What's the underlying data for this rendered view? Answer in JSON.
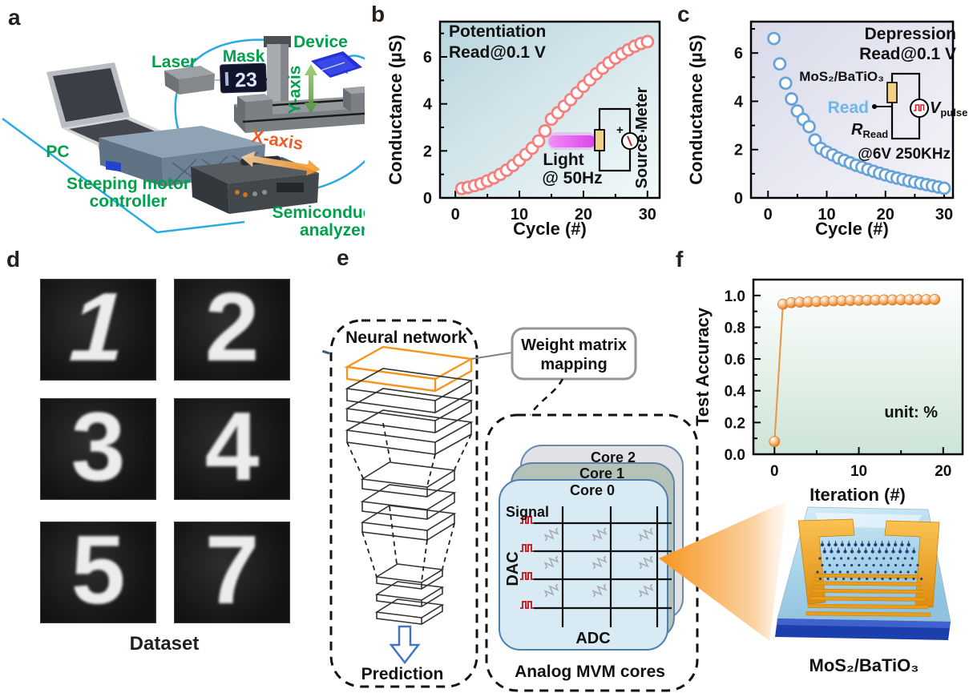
{
  "figure_labels": {
    "a": "a",
    "b": "b",
    "c": "c",
    "d": "d",
    "e": "e",
    "f": "f"
  },
  "panel_a": {
    "pc": "PC",
    "laser": "Laser",
    "mask": "Mask",
    "mask_display": "23",
    "device": "Device",
    "y_axis": "Y-axis",
    "x_axis": "X-axis",
    "motor_line1": "Steeping motor",
    "motor_line2": "controller",
    "analyzer_line1": "Semiconductor",
    "analyzer_line2": "analyzer"
  },
  "panel_b_inset": {
    "light_line1": "Light",
    "light_line2": "@ 50Hz",
    "meter": "Source Meter",
    "plus": "+",
    "minus": "-"
  },
  "panel_c_inset": {
    "material": "MoS₂/BaTiO₃",
    "read": "Read",
    "r_base": "R",
    "r_sub": "Read",
    "v_base": "V",
    "v_sub": "pulse",
    "condition": "@6V 250KHz"
  },
  "panel_d": {
    "digits": [
      "1",
      "2",
      "3",
      "4",
      "5",
      "7"
    ],
    "caption": "Dataset"
  },
  "panel_e": {
    "nn_title": "Neural network",
    "weight_line1": "Weight matrix",
    "weight_line2": "mapping",
    "core2": "Core 2",
    "core1": "Core 1",
    "core0": "Core 0",
    "signal": "Signal",
    "dac": "DAC",
    "adc": "ADC",
    "mvm_caption": "Analog MVM cores",
    "prediction": "Prediction"
  },
  "panel_f": {
    "device_label": "MoS₂/BaTiO₃"
  },
  "colors": {
    "green_label": "#00a14b",
    "orange_label": "#f15a24",
    "wire_blue": "#29abe2",
    "potentiation_marker": "#f47f7f",
    "depression_marker": "#68a3d8",
    "accuracy_marker": "#ef9344",
    "nn_highlight": "#f7941d"
  },
  "chart_data": [
    {
      "id": "b-potentiation",
      "type": "scatter",
      "marker": "open-circle",
      "color": "#f47f7f",
      "title_lines": [
        "Potentiation",
        "Read@0.1 V"
      ],
      "xlabel": "Cycle (#)",
      "ylabel": "Conductance (µS)",
      "xlim": [
        -2.4,
        31.9
      ],
      "ylim": [
        0,
        7.5
      ],
      "xticks": [
        0,
        10,
        20,
        30
      ],
      "xtick_labels": [
        "0",
        "10",
        "20",
        "30"
      ],
      "xminor": [
        5,
        15,
        25
      ],
      "yticks": [
        0,
        2,
        4,
        6
      ],
      "ytick_labels": [
        "0",
        "2",
        "4",
        "6"
      ],
      "yminor": [
        1,
        3,
        5,
        7
      ],
      "grid": false,
      "x": [
        1,
        2,
        3,
        4,
        5,
        6,
        7,
        8,
        9,
        10,
        11,
        12,
        13,
        14,
        15,
        16,
        17,
        18,
        19,
        20,
        21,
        22,
        23,
        24,
        25,
        26,
        27,
        28,
        29,
        30
      ],
      "y": [
        0.4,
        0.45,
        0.52,
        0.6,
        0.72,
        0.85,
        1.0,
        1.18,
        1.38,
        1.6,
        1.85,
        2.12,
        2.42,
        2.85,
        3.35,
        3.62,
        3.9,
        4.18,
        4.47,
        4.75,
        5.02,
        5.28,
        5.52,
        5.75,
        5.95,
        6.13,
        6.3,
        6.45,
        6.57,
        6.65
      ]
    },
    {
      "id": "c-depression",
      "type": "scatter",
      "marker": "open-circle",
      "color": "#68a3d8",
      "title_lines": [
        "Depression",
        "Read@0.1 V"
      ],
      "xlabel": "Cycle (#)",
      "ylabel": "Conductance (µS)",
      "xlim": [
        -2.9,
        31.5
      ],
      "ylim": [
        0,
        7.3
      ],
      "xticks": [
        0,
        10,
        20,
        30
      ],
      "xtick_labels": [
        "0",
        "10",
        "20",
        "30"
      ],
      "xminor": [
        5,
        15,
        25
      ],
      "yticks": [
        0,
        2,
        4,
        6
      ],
      "ytick_labels": [
        "0",
        "2",
        "4",
        "6"
      ],
      "yminor": [
        1,
        3,
        5,
        7
      ],
      "grid": false,
      "x": [
        1,
        2,
        3,
        4,
        5,
        6,
        7,
        8,
        9,
        10,
        11,
        12,
        13,
        14,
        15,
        16,
        17,
        18,
        19,
        20,
        21,
        22,
        23,
        24,
        25,
        26,
        27,
        28,
        29,
        30
      ],
      "y": [
        6.6,
        5.55,
        4.75,
        4.1,
        3.6,
        3.25,
        2.95,
        2.4,
        2.05,
        1.9,
        1.78,
        1.65,
        1.55,
        1.45,
        1.35,
        1.27,
        1.18,
        1.1,
        1.02,
        0.95,
        0.88,
        0.82,
        0.76,
        0.7,
        0.65,
        0.6,
        0.55,
        0.5,
        0.45,
        0.4
      ]
    },
    {
      "id": "f-accuracy",
      "type": "scatter-line",
      "marker": "sphere",
      "color": "#ef9344",
      "annotation": "unit: %",
      "xlabel": "Iteration (#)",
      "ylabel": "Test Accuracy",
      "xlim": [
        -2.5,
        22.3
      ],
      "ylim": [
        0,
        1.1
      ],
      "xticks": [
        0,
        10,
        20
      ],
      "xtick_labels": [
        "0",
        "10",
        "20"
      ],
      "xminor": [
        5,
        15
      ],
      "yticks": [
        0,
        0.2,
        0.4,
        0.6,
        0.8,
        1.0
      ],
      "ytick_labels": [
        "0.0",
        "0.2",
        "0.4",
        "0.6",
        "0.8",
        "1.0"
      ],
      "yminor": [
        0.1,
        0.3,
        0.5,
        0.7,
        0.9
      ],
      "grid": false,
      "x": [
        0,
        1,
        2,
        3,
        4,
        5,
        6,
        7,
        8,
        9,
        10,
        11,
        12,
        13,
        14,
        15,
        16,
        17,
        18,
        19
      ],
      "y": [
        0.08,
        0.945,
        0.955,
        0.958,
        0.96,
        0.962,
        0.964,
        0.966,
        0.967,
        0.968,
        0.969,
        0.97,
        0.971,
        0.972,
        0.972,
        0.973,
        0.973,
        0.974,
        0.974,
        0.975
      ]
    }
  ]
}
